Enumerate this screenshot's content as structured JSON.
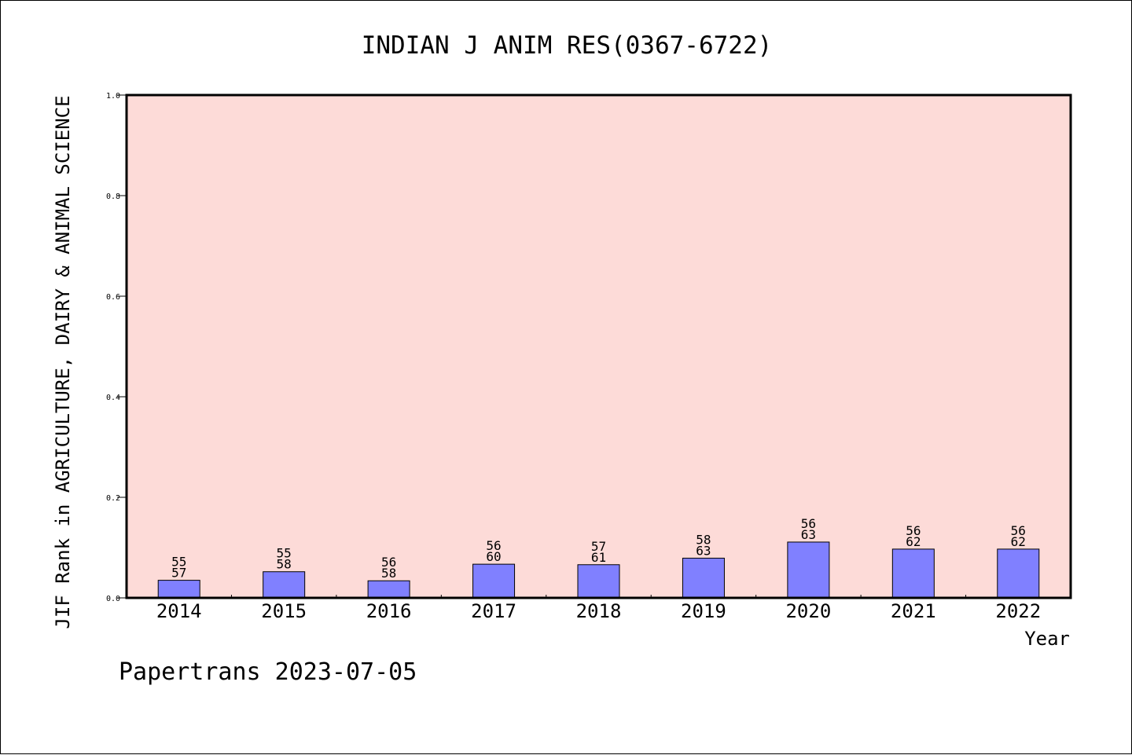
{
  "chart_data": {
    "type": "bar",
    "title": "INDIAN J ANIM RES(0367-6722)",
    "ylabel": "JIF Rank in AGRICULTURE, DAIRY & ANIMAL SCIENCE",
    "xlabel": "Year",
    "ylim": [
      0,
      1.0
    ],
    "yticks": [
      "0.0",
      "0.2",
      "0.4",
      "0.6",
      "0.8",
      "1.0"
    ],
    "categories": [
      "2014",
      "2015",
      "2016",
      "2017",
      "2018",
      "2019",
      "2020",
      "2021",
      "2022"
    ],
    "values": [
      0.035,
      0.052,
      0.034,
      0.067,
      0.066,
      0.079,
      0.111,
      0.097,
      0.097
    ],
    "rank": [
      "55",
      "55",
      "56",
      "56",
      "57",
      "58",
      "56",
      "56",
      "56"
    ],
    "total": [
      "57",
      "58",
      "58",
      "60",
      "61",
      "63",
      "63",
      "62",
      "62"
    ],
    "grid": false,
    "legend": "none",
    "colors": {
      "plot_background": "#fddbd8",
      "bar_fill": "#8080ff",
      "bar_stroke": "#000000",
      "axis": "#000000"
    }
  },
  "footer": "Papertrans 2023-07-05"
}
